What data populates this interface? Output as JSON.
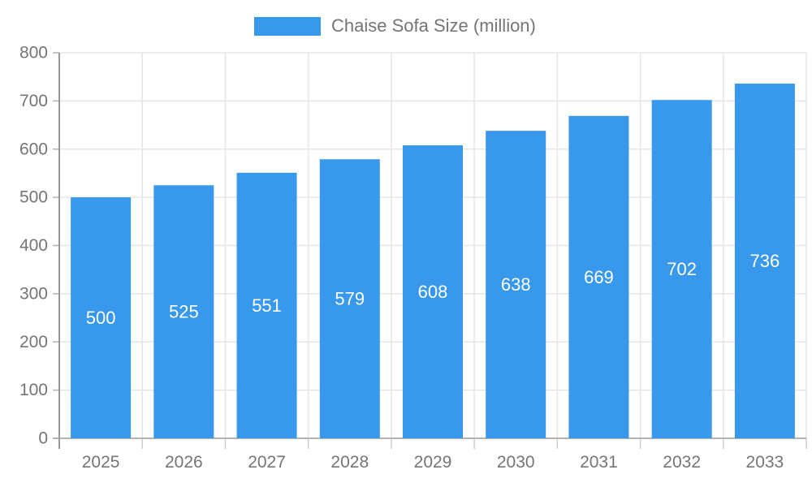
{
  "legend": {
    "label": "Chaise Sofa Size (million)"
  },
  "chart_data": {
    "type": "bar",
    "title": "Chaise Sofa Size (million)",
    "categories": [
      "2025",
      "2026",
      "2027",
      "2028",
      "2029",
      "2030",
      "2031",
      "2032",
      "2033"
    ],
    "values": [
      500,
      525,
      551,
      579,
      608,
      638,
      669,
      702,
      736
    ],
    "xlabel": "",
    "ylabel": "",
    "ylim": [
      0,
      800
    ],
    "ytick_interval": 100,
    "yticks": [
      0,
      100,
      200,
      300,
      400,
      500,
      600,
      700,
      800
    ],
    "grid": true,
    "legend_position": "top-center",
    "value_labels_inside_bars": true,
    "colors": {
      "bar": "#3898EC",
      "value_label": "#FFFFFF",
      "axis_text": "#757575",
      "grid_line": "#E6E6E6",
      "y_axis_line": "#999999",
      "x_axis_line": "#B3B3B3",
      "tick": "#CCCCCC"
    }
  }
}
